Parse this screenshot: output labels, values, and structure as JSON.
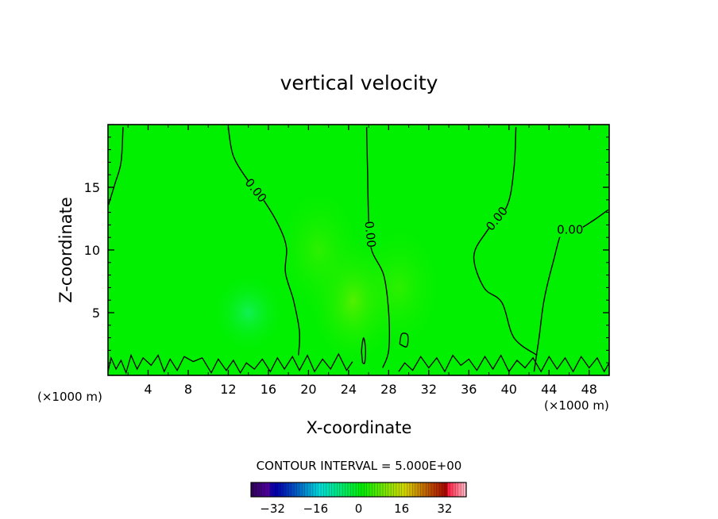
{
  "chart_data": {
    "type": "heatmap",
    "title": "vertical velocity",
    "xlabel": "X-coordinate",
    "ylabel": "Z-coordinate",
    "x_unit": "(×1000 m)",
    "y_unit": "(×1000 m)",
    "xlim": [
      0,
      50
    ],
    "ylim": [
      0,
      20
    ],
    "x_ticks": [
      4,
      8,
      12,
      16,
      20,
      24,
      28,
      32,
      36,
      40,
      44,
      48
    ],
    "y_ticks": [
      5,
      10,
      15
    ],
    "contour_interval_text": "CONTOUR INTERVAL = 5.000E+00",
    "contour_label": "0.00",
    "colorbar": {
      "range": [
        -40,
        40
      ],
      "levels": 80,
      "ticks": [
        -32,
        -16,
        0,
        16,
        32
      ],
      "tick_labels": [
        "−32",
        "−16",
        "0",
        "16",
        "32"
      ]
    },
    "colors": {
      "field_background": "#00f000",
      "contour_line": "#000000",
      "frame": "#000000"
    },
    "field_features": [
      {
        "kind": "weak updraft",
        "x": 24.5,
        "z": 6,
        "value": 2
      },
      {
        "kind": "weak updraft",
        "x": 21,
        "z": 10,
        "value": 1.5
      },
      {
        "kind": "weak downdraft",
        "x": 14,
        "z": 5,
        "value": -2
      },
      {
        "kind": "weak updraft",
        "x": 29,
        "z": 7,
        "value": 1
      }
    ],
    "zero_contours": [
      {
        "label": true,
        "points": [
          [
            12.0,
            19.8
          ],
          [
            12.5,
            17.5
          ],
          [
            14.0,
            15.5
          ],
          [
            15.5,
            14.0
          ],
          [
            17.0,
            12.0
          ],
          [
            17.8,
            10.2
          ],
          [
            17.7,
            8.2
          ],
          [
            18.5,
            6.0
          ],
          [
            19.1,
            3.5
          ],
          [
            19.0,
            1.6
          ]
        ]
      },
      {
        "label": true,
        "points": [
          [
            25.8,
            19.8
          ],
          [
            25.9,
            16.0
          ],
          [
            26.0,
            12.5
          ],
          [
            26.3,
            10.0
          ],
          [
            27.5,
            8.0
          ],
          [
            28.0,
            5.0
          ],
          [
            28.0,
            2.0
          ],
          [
            27.4,
            0.6
          ]
        ]
      },
      {
        "label": true,
        "points": [
          [
            40.7,
            19.8
          ],
          [
            40.5,
            16.5
          ],
          [
            39.8,
            13.5
          ],
          [
            37.8,
            11.5
          ],
          [
            36.5,
            9.5
          ],
          [
            37.5,
            7.0
          ],
          [
            39.3,
            5.8
          ],
          [
            40.5,
            3.0
          ],
          [
            42.8,
            1.6
          ]
        ]
      },
      {
        "label": true,
        "points": [
          [
            49.9,
            13.2
          ],
          [
            48.5,
            12.4
          ],
          [
            46.8,
            11.6
          ],
          [
            45.4,
            11.6
          ],
          [
            44.4,
            9.0
          ],
          [
            43.5,
            6.0
          ],
          [
            43.0,
            3.0
          ],
          [
            42.5,
            0.3
          ]
        ]
      },
      {
        "label": false,
        "points": [
          [
            1.5,
            19.8
          ],
          [
            1.3,
            17.0
          ],
          [
            0.7,
            15.3
          ],
          [
            0.05,
            13.6
          ]
        ]
      },
      {
        "label": false,
        "points": [
          [
            25.4,
            1.0
          ],
          [
            25.3,
            2.0
          ],
          [
            25.5,
            3.0
          ],
          [
            25.7,
            2.0
          ],
          [
            25.6,
            1.0
          ],
          [
            25.4,
            1.0
          ]
        ]
      },
      {
        "label": false,
        "points": [
          [
            29.1,
            2.5
          ],
          [
            29.3,
            3.3
          ],
          [
            29.9,
            3.2
          ],
          [
            29.8,
            2.3
          ],
          [
            29.1,
            2.5
          ]
        ]
      }
    ],
    "surface_contours": [
      [
        [
          0.0,
          0.3
        ],
        [
          0.3,
          1.4
        ],
        [
          0.8,
          0.5
        ],
        [
          1.3,
          1.2
        ],
        [
          1.8,
          0.2
        ],
        [
          2.3,
          1.6
        ],
        [
          2.9,
          0.5
        ],
        [
          3.5,
          1.4
        ],
        [
          4.3,
          0.8
        ],
        [
          5.0,
          1.6
        ],
        [
          5.6,
          0.3
        ],
        [
          6.2,
          1.3
        ],
        [
          6.9,
          0.4
        ],
        [
          7.6,
          1.5
        ],
        [
          8.5,
          1.1
        ],
        [
          9.4,
          1.4
        ],
        [
          10.3,
          0.2
        ],
        [
          11.0,
          1.3
        ],
        [
          11.8,
          0.4
        ],
        [
          12.5,
          1.2
        ],
        [
          13.2,
          0.2
        ],
        [
          13.8,
          1.0
        ],
        [
          14.6,
          0.5
        ],
        [
          15.4,
          1.3
        ],
        [
          16.2,
          0.3
        ],
        [
          16.9,
          1.4
        ],
        [
          17.6,
          0.5
        ],
        [
          18.4,
          1.5
        ],
        [
          19.1,
          0.4
        ],
        [
          19.9,
          1.6
        ],
        [
          20.6,
          0.3
        ],
        [
          21.4,
          1.3
        ],
        [
          22.2,
          0.5
        ],
        [
          23.0,
          1.7
        ],
        [
          23.8,
          0.4
        ],
        [
          24.4,
          1.1
        ]
      ],
      [
        [
          29.0,
          0.3
        ],
        [
          29.6,
          1.0
        ],
        [
          30.4,
          0.4
        ],
        [
          31.2,
          1.5
        ],
        [
          32.0,
          0.6
        ],
        [
          32.8,
          1.4
        ],
        [
          33.6,
          0.3
        ],
        [
          34.4,
          1.6
        ],
        [
          35.2,
          0.8
        ],
        [
          36.0,
          1.3
        ],
        [
          36.8,
          0.4
        ],
        [
          37.6,
          1.5
        ],
        [
          38.4,
          0.5
        ],
        [
          39.2,
          1.6
        ],
        [
          40.0,
          0.3
        ],
        [
          40.8,
          1.2
        ],
        [
          41.6,
          0.6
        ],
        [
          42.4,
          1.4
        ],
        [
          43.2,
          0.3
        ],
        [
          44.0,
          1.5
        ],
        [
          44.8,
          0.5
        ],
        [
          45.6,
          1.4
        ],
        [
          46.4,
          0.3
        ],
        [
          47.2,
          1.5
        ],
        [
          48.0,
          0.6
        ],
        [
          48.8,
          1.4
        ],
        [
          49.5,
          0.3
        ],
        [
          50.0,
          1.0
        ]
      ]
    ]
  }
}
